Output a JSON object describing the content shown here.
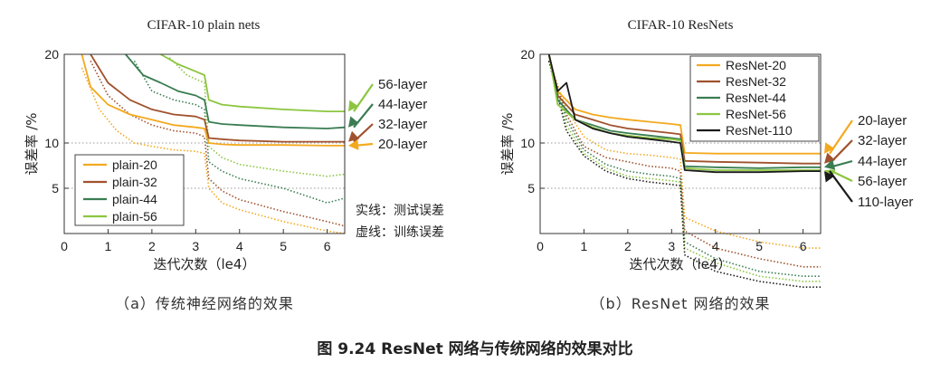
{
  "figure_caption": "图 9.24 ResNet 网络与传统网络的效果对比",
  "colors": {
    "c20": "#F3A91F",
    "c32": "#A0522D",
    "c44": "#3A7D52",
    "c56": "#8CC63F",
    "c110": "#1A1A1A"
  },
  "chart_data": [
    {
      "type": "line",
      "title": "CIFAR-10 plain nets",
      "subcaption": "（a）传统神经网络的效果",
      "xlabel": "迭代次数（le4）",
      "ylabel": "误差率 /%",
      "xlim": [
        0,
        6.4
      ],
      "ylim": [
        0,
        20
      ],
      "xticks": [
        "0",
        "1",
        "2",
        "3",
        "4",
        "5",
        "6"
      ],
      "yticks": [
        "5",
        "10",
        "20"
      ],
      "note_lines": [
        "实线：测试误差",
        "虚线：训练误差"
      ],
      "legend_position": "lower-left",
      "series": [
        {
          "name": "plain-20",
          "color_key": "c20",
          "end_label": "20-layer",
          "test": [
            [
              0.4,
              20
            ],
            [
              0.6,
              15.5
            ],
            [
              1,
              13.5
            ],
            [
              1.5,
              12.5
            ],
            [
              2,
              12
            ],
            [
              2.5,
              11.5
            ],
            [
              3,
              11.3
            ],
            [
              3.2,
              11.2
            ],
            [
              3.3,
              10
            ],
            [
              3.6,
              9.8
            ],
            [
              4,
              9.7
            ],
            [
              5,
              9.7
            ],
            [
              6,
              9.6
            ],
            [
              6.4,
              9.6
            ]
          ],
          "train": [
            [
              0.4,
              18
            ],
            [
              0.8,
              13
            ],
            [
              1.2,
              11
            ],
            [
              1.6,
              10
            ],
            [
              2,
              9.5
            ],
            [
              2.5,
              9
            ],
            [
              3,
              8.8
            ],
            [
              3.2,
              8.5
            ],
            [
              3.3,
              5
            ],
            [
              3.6,
              4
            ],
            [
              4,
              3.6
            ],
            [
              5,
              3
            ],
            [
              6,
              2.6
            ],
            [
              6.4,
              2.5
            ]
          ]
        },
        {
          "name": "plain-32",
          "color_key": "c32",
          "end_label": "32-layer",
          "test": [
            [
              0.6,
              20
            ],
            [
              1,
              16
            ],
            [
              1.5,
              14
            ],
            [
              2,
              13
            ],
            [
              2.5,
              12.5
            ],
            [
              3,
              12.3
            ],
            [
              3.2,
              12
            ],
            [
              3.3,
              10.4
            ],
            [
              3.6,
              10.3
            ],
            [
              4,
              10.2
            ],
            [
              5,
              10.1
            ],
            [
              6,
              10.1
            ],
            [
              6.4,
              10.1
            ]
          ],
          "train": [
            [
              0.6,
              19
            ],
            [
              1,
              14.5
            ],
            [
              1.5,
              12.5
            ],
            [
              2,
              11.5
            ],
            [
              2.5,
              11
            ],
            [
              3,
              10.8
            ],
            [
              3.2,
              10.5
            ],
            [
              3.3,
              5.8
            ],
            [
              3.6,
              4.8
            ],
            [
              4,
              4.2
            ],
            [
              5,
              3.5
            ],
            [
              6,
              3
            ],
            [
              6.4,
              2.8
            ]
          ]
        },
        {
          "name": "plain-44",
          "color_key": "c44",
          "end_label": "44-layer",
          "test": [
            [
              1.4,
              20
            ],
            [
              1.8,
              17
            ],
            [
              2.2,
              16
            ],
            [
              2.6,
              15
            ],
            [
              3,
              14.5
            ],
            [
              3.2,
              14
            ],
            [
              3.3,
              11.8
            ],
            [
              3.6,
              11.6
            ],
            [
              4,
              11.5
            ],
            [
              5,
              11.3
            ],
            [
              6,
              11.2
            ],
            [
              6.4,
              11.3
            ]
          ],
          "train": [
            [
              1.6,
              19
            ],
            [
              2,
              15
            ],
            [
              2.5,
              14
            ],
            [
              3,
              13.5
            ],
            [
              3.2,
              13
            ],
            [
              3.3,
              7.5
            ],
            [
              3.6,
              6.5
            ],
            [
              4,
              5.8
            ],
            [
              5,
              5
            ],
            [
              6,
              4
            ],
            [
              6.4,
              4.3
            ]
          ]
        },
        {
          "name": "plain-56",
          "color_key": "c56",
          "end_label": "56-layer",
          "test": [
            [
              2.2,
              20
            ],
            [
              2.6,
              18.5
            ],
            [
              3,
              17.5
            ],
            [
              3.2,
              17
            ],
            [
              3.3,
              14
            ],
            [
              3.6,
              13.5
            ],
            [
              4,
              13.3
            ],
            [
              5,
              13
            ],
            [
              6,
              12.8
            ],
            [
              6.4,
              12.8
            ]
          ],
          "train": [
            [
              2.4,
              19.5
            ],
            [
              2.8,
              17
            ],
            [
              3.2,
              16
            ],
            [
              3.3,
              9.5
            ],
            [
              3.6,
              8
            ],
            [
              4,
              7.2
            ],
            [
              5,
              6.5
            ],
            [
              6,
              6
            ],
            [
              6.4,
              6.2
            ]
          ]
        }
      ]
    },
    {
      "type": "line",
      "title": "CIFAR-10 ResNets",
      "subcaption": "（b）ResNet 网络的效果",
      "xlabel": "迭代次数（le4）",
      "ylabel": "误差率 /%",
      "xlim": [
        0,
        6.4
      ],
      "ylim": [
        0,
        20
      ],
      "xticks": [
        "0",
        "1",
        "2",
        "3",
        "4",
        "5",
        "6"
      ],
      "yticks": [
        "5",
        "10",
        "20"
      ],
      "legend_position": "upper-right",
      "series": [
        {
          "name": "ResNet-20",
          "color_key": "c20",
          "end_label": "20-layer",
          "test": [
            [
              0.2,
              20
            ],
            [
              0.4,
              15
            ],
            [
              0.8,
              13
            ],
            [
              1.2,
              12.5
            ],
            [
              1.6,
              12.2
            ],
            [
              2,
              12
            ],
            [
              2.5,
              11.8
            ],
            [
              3,
              11.6
            ],
            [
              3.2,
              11.5
            ],
            [
              3.3,
              8.6
            ],
            [
              4,
              8.5
            ],
            [
              5,
              8.5
            ],
            [
              6,
              8.5
            ],
            [
              6.4,
              8.5
            ]
          ],
          "train": [
            [
              0.2,
              19
            ],
            [
              0.6,
              13
            ],
            [
              1,
              10.5
            ],
            [
              1.5,
              9
            ],
            [
              2,
              8.5
            ],
            [
              2.5,
              8.3
            ],
            [
              3,
              8
            ],
            [
              3.2,
              7.8
            ],
            [
              3.3,
              3.2
            ],
            [
              4,
              2.6
            ],
            [
              5,
              2.2
            ],
            [
              6,
              2
            ],
            [
              6.4,
              2
            ]
          ]
        },
        {
          "name": "ResNet-32",
          "color_key": "c32",
          "end_label": "32-layer",
          "test": [
            [
              0.2,
              20
            ],
            [
              0.4,
              14.5
            ],
            [
              0.8,
              12.5
            ],
            [
              1.2,
              12
            ],
            [
              1.6,
              11.5
            ],
            [
              2,
              11.2
            ],
            [
              2.5,
              11
            ],
            [
              3,
              10.8
            ],
            [
              3.2,
              10.7
            ],
            [
              3.3,
              7.6
            ],
            [
              4,
              7.5
            ],
            [
              5,
              7.4
            ],
            [
              6,
              7.3
            ],
            [
              6.4,
              7.3
            ]
          ],
          "train": [
            [
              0.2,
              19
            ],
            [
              0.6,
              12.5
            ],
            [
              1,
              9.5
            ],
            [
              1.5,
              8
            ],
            [
              2,
              7.5
            ],
            [
              2.5,
              7
            ],
            [
              3,
              6.8
            ],
            [
              3.2,
              6.5
            ],
            [
              3.3,
              2.6
            ],
            [
              4,
              2
            ],
            [
              5,
              1.7
            ],
            [
              6,
              1.5
            ],
            [
              6.4,
              1.5
            ]
          ]
        },
        {
          "name": "ResNet-44",
          "color_key": "c44",
          "end_label": "44-layer",
          "test": [
            [
              0.2,
              20
            ],
            [
              0.4,
              14
            ],
            [
              0.8,
              12
            ],
            [
              1.2,
              11.5
            ],
            [
              1.6,
              11
            ],
            [
              2,
              10.8
            ],
            [
              2.5,
              10.6
            ],
            [
              3,
              10.4
            ],
            [
              3.2,
              10.3
            ],
            [
              3.3,
              7
            ],
            [
              4,
              6.9
            ],
            [
              5,
              6.8
            ],
            [
              6,
              6.9
            ],
            [
              6.4,
              6.9
            ]
          ],
          "train": [
            [
              0.2,
              19
            ],
            [
              0.6,
              12
            ],
            [
              1,
              9
            ],
            [
              1.5,
              7.2
            ],
            [
              2,
              6.5
            ],
            [
              2.5,
              6.2
            ],
            [
              3,
              6
            ],
            [
              3.2,
              5.8
            ],
            [
              3.3,
              2.2
            ],
            [
              4,
              1.7
            ],
            [
              5,
              1.4
            ],
            [
              6,
              1.3
            ],
            [
              6.4,
              1.3
            ]
          ]
        },
        {
          "name": "ResNet-56",
          "color_key": "c56",
          "end_label": "56-layer",
          "test": [
            [
              0.2,
              20
            ],
            [
              0.4,
              13.5
            ],
            [
              0.8,
              12
            ],
            [
              1.2,
              11.3
            ],
            [
              1.6,
              10.8
            ],
            [
              2,
              10.6
            ],
            [
              2.5,
              10.4
            ],
            [
              3,
              10.3
            ],
            [
              3.2,
              10.2
            ],
            [
              3.3,
              6.8
            ],
            [
              4,
              6.6
            ],
            [
              5,
              6.6
            ],
            [
              6,
              6.6
            ],
            [
              6.4,
              6.6
            ]
          ],
          "train": [
            [
              0.2,
              19
            ],
            [
              0.6,
              11.5
            ],
            [
              1,
              8.5
            ],
            [
              1.5,
              6.8
            ],
            [
              2,
              6
            ],
            [
              2.5,
              5.8
            ],
            [
              3,
              5.6
            ],
            [
              3.2,
              5.5
            ],
            [
              3.3,
              2
            ],
            [
              4,
              1.6
            ],
            [
              5,
              1.3
            ],
            [
              6,
              1.2
            ],
            [
              6.4,
              1.2
            ]
          ]
        },
        {
          "name": "ResNet-110",
          "color_key": "c110",
          "end_label": "110-layer",
          "test": [
            [
              0.2,
              20
            ],
            [
              0.4,
              15
            ],
            [
              0.6,
              16
            ],
            [
              0.8,
              12
            ],
            [
              1.2,
              11.2
            ],
            [
              1.6,
              10.8
            ],
            [
              2,
              10.5
            ],
            [
              2.5,
              10.3
            ],
            [
              3,
              10.1
            ],
            [
              3.2,
              10
            ],
            [
              3.3,
              6.6
            ],
            [
              4,
              6.4
            ],
            [
              5,
              6.4
            ],
            [
              6,
              6.5
            ],
            [
              6.4,
              6.5
            ]
          ],
          "train": [
            [
              0.2,
              19
            ],
            [
              0.6,
              11
            ],
            [
              1,
              8.2
            ],
            [
              1.5,
              6.5
            ],
            [
              2,
              5.8
            ],
            [
              2.5,
              5.5
            ],
            [
              3,
              5.3
            ],
            [
              3.2,
              5.2
            ],
            [
              3.3,
              1.8
            ],
            [
              4,
              1.4
            ],
            [
              5,
              1.2
            ],
            [
              6,
              1.1
            ],
            [
              6.4,
              1.1
            ]
          ]
        }
      ]
    }
  ]
}
